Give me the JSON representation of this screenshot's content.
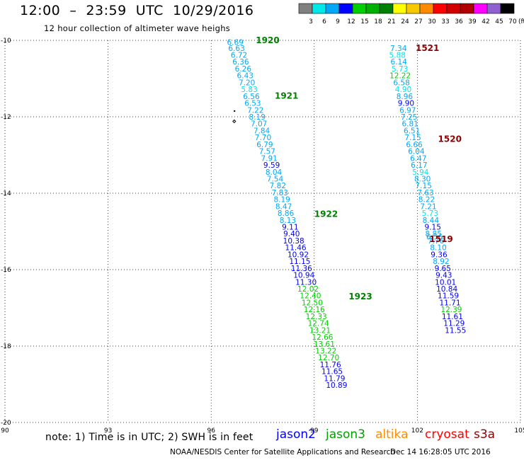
{
  "header": {
    "title": "12:00  –  23:59  UTC  10/29/2016",
    "subtitle": "12 hour collection of altimeter wave heighs"
  },
  "colorbar": {
    "swatches": [
      "#808080",
      "#00e8e8",
      "#00a8f8",
      "#0000ff",
      "#00d000",
      "#00b000",
      "#008000",
      "#ffff00",
      "#f8c800",
      "#ff8c00",
      "#ff0000",
      "#d00000",
      "#b00000",
      "#ff00ff",
      "#9060d0",
      "#000000"
    ],
    "labels": [
      "3",
      "6",
      "9",
      "12",
      "15",
      "18",
      "21",
      "24",
      "27",
      "30",
      "33",
      "36",
      "39",
      "42",
      "45",
      "70"
    ],
    "unit": "(ft)"
  },
  "chart_data": {
    "type": "scatter",
    "title": "12:00 – 23:59 UTC 10/29/2016",
    "xlim": [
      90,
      105
    ],
    "ylim": [
      -20,
      -10
    ],
    "x_ticks": [
      "90",
      "93",
      "96",
      "99",
      "102",
      "105"
    ],
    "y_ticks": [
      "-10",
      "-12",
      "-14",
      "-16",
      "-18",
      "-20"
    ],
    "grid": true,
    "legend": "bottom",
    "series": [
      {
        "name": "jason3",
        "color_hex": "#00a000",
        "points": [
          {
            "x": 96.7,
            "y": -10.05,
            "v": "6.69"
          },
          {
            "x": 96.74,
            "y": -10.2,
            "v": "6.63"
          },
          {
            "x": 96.81,
            "y": -10.38,
            "v": "6.72"
          },
          {
            "x": 96.86,
            "y": -10.56,
            "v": "6.36"
          },
          {
            "x": 96.93,
            "y": -10.74,
            "v": "6.26"
          },
          {
            "x": 96.99,
            "y": -10.92,
            "v": "6.43"
          },
          {
            "x": 97.04,
            "y": -11.1,
            "v": "7.20"
          },
          {
            "x": 97.11,
            "y": -11.28,
            "v": "5.83"
          },
          {
            "x": 97.17,
            "y": -11.46,
            "v": "6.56"
          },
          {
            "x": 97.21,
            "y": -11.64,
            "v": "6.53"
          },
          {
            "x": 97.29,
            "y": -11.82,
            "v": "7.22"
          },
          {
            "x": 97.34,
            "y": -12.0,
            "v": "8.19"
          },
          {
            "x": 97.39,
            "y": -12.18,
            "v": "7.07"
          },
          {
            "x": 97.47,
            "y": -12.36,
            "v": "7.84"
          },
          {
            "x": 97.51,
            "y": -12.54,
            "v": "7.70"
          },
          {
            "x": 97.56,
            "y": -12.72,
            "v": "6.79"
          },
          {
            "x": 97.63,
            "y": -12.9,
            "v": "7.57"
          },
          {
            "x": 97.69,
            "y": -13.08,
            "v": "7.91"
          },
          {
            "x": 97.76,
            "y": -13.26,
            "v": "9.59"
          },
          {
            "x": 97.82,
            "y": -13.44,
            "v": "8.04"
          },
          {
            "x": 97.86,
            "y": -13.62,
            "v": "7.54"
          },
          {
            "x": 97.94,
            "y": -13.8,
            "v": "7.82"
          },
          {
            "x": 98.0,
            "y": -13.98,
            "v": "7.83"
          },
          {
            "x": 98.06,
            "y": -14.16,
            "v": "8.19"
          },
          {
            "x": 98.11,
            "y": -14.34,
            "v": "8.47"
          },
          {
            "x": 98.17,
            "y": -14.52,
            "v": "8.86"
          },
          {
            "x": 98.23,
            "y": -14.7,
            "v": "8.13"
          },
          {
            "x": 98.3,
            "y": -14.88,
            "v": "9.11"
          },
          {
            "x": 98.34,
            "y": -15.06,
            "v": "9.40"
          },
          {
            "x": 98.4,
            "y": -15.24,
            "v": "10.38"
          },
          {
            "x": 98.46,
            "y": -15.42,
            "v": "11.46"
          },
          {
            "x": 98.53,
            "y": -15.6,
            "v": "10.92"
          },
          {
            "x": 98.58,
            "y": -15.78,
            "v": "11.15"
          },
          {
            "x": 98.63,
            "y": -15.96,
            "v": "11.36"
          },
          {
            "x": 98.7,
            "y": -16.14,
            "v": "10.94"
          },
          {
            "x": 98.76,
            "y": -16.32,
            "v": "11.30"
          },
          {
            "x": 98.82,
            "y": -16.5,
            "v": "12.02"
          },
          {
            "x": 98.89,
            "y": -16.68,
            "v": "12.40"
          },
          {
            "x": 98.94,
            "y": -16.86,
            "v": "12.50"
          },
          {
            "x": 99.0,
            "y": -17.04,
            "v": "12.16"
          },
          {
            "x": 99.06,
            "y": -17.22,
            "v": "12.33"
          },
          {
            "x": 99.12,
            "y": -17.4,
            "v": "12.74"
          },
          {
            "x": 99.17,
            "y": -17.58,
            "v": "13.21"
          },
          {
            "x": 99.24,
            "y": -17.76,
            "v": "12.66"
          },
          {
            "x": 99.29,
            "y": -17.94,
            "v": "13.61"
          },
          {
            "x": 99.34,
            "y": -18.12,
            "v": "13.22"
          },
          {
            "x": 99.42,
            "y": -18.3,
            "v": "12.70"
          },
          {
            "x": 99.47,
            "y": -18.48,
            "v": "11.76"
          },
          {
            "x": 99.52,
            "y": -18.66,
            "v": "11.65"
          },
          {
            "x": 99.59,
            "y": -18.84,
            "v": "11.79"
          },
          {
            "x": 99.65,
            "y": -19.02,
            "v": "10.89"
          }
        ]
      },
      {
        "name": "cryosat",
        "color_hex": "#b00000",
        "points": [
          {
            "x": 101.45,
            "y": -10.2,
            "v": "7.34"
          },
          {
            "x": 101.42,
            "y": -10.38,
            "v": "5.88"
          },
          {
            "x": 101.46,
            "y": -10.56,
            "v": "6.14"
          },
          {
            "x": 101.49,
            "y": -10.74,
            "v": "5.73"
          },
          {
            "x": 101.5,
            "y": -10.92,
            "v": "12.22"
          },
          {
            "x": 101.54,
            "y": -11.1,
            "v": "6.58"
          },
          {
            "x": 101.59,
            "y": -11.28,
            "v": "4.90"
          },
          {
            "x": 101.63,
            "y": -11.46,
            "v": "8.96"
          },
          {
            "x": 101.67,
            "y": -11.64,
            "v": "9.90"
          },
          {
            "x": 101.72,
            "y": -11.82,
            "v": "6.97"
          },
          {
            "x": 101.76,
            "y": -12.0,
            "v": "7.25"
          },
          {
            "x": 101.79,
            "y": -12.18,
            "v": "6.81"
          },
          {
            "x": 101.84,
            "y": -12.36,
            "v": "6.51"
          },
          {
            "x": 101.87,
            "y": -12.54,
            "v": "7.15"
          },
          {
            "x": 101.91,
            "y": -12.72,
            "v": "6.66"
          },
          {
            "x": 101.97,
            "y": -12.9,
            "v": "6.04"
          },
          {
            "x": 102.03,
            "y": -13.08,
            "v": "6.47"
          },
          {
            "x": 102.05,
            "y": -13.26,
            "v": "6.17"
          },
          {
            "x": 102.09,
            "y": -13.44,
            "v": "5.94"
          },
          {
            "x": 102.15,
            "y": -13.62,
            "v": "8.30"
          },
          {
            "x": 102.18,
            "y": -13.8,
            "v": "7.15"
          },
          {
            "x": 102.24,
            "y": -13.98,
            "v": "7.63"
          },
          {
            "x": 102.27,
            "y": -14.16,
            "v": "8.22"
          },
          {
            "x": 102.32,
            "y": -14.34,
            "v": "7.21"
          },
          {
            "x": 102.37,
            "y": -14.52,
            "v": "5.73"
          },
          {
            "x": 102.39,
            "y": -14.7,
            "v": "8.44"
          },
          {
            "x": 102.45,
            "y": -14.88,
            "v": "9.15"
          },
          {
            "x": 102.47,
            "y": -15.06,
            "v": "8.85"
          },
          {
            "x": 102.5,
            "y": -15.14,
            "v": "6.56"
          },
          {
            "x": 102.54,
            "y": -15.24,
            "v": "7.76"
          },
          {
            "x": 102.61,
            "y": -15.42,
            "v": "8.10"
          },
          {
            "x": 102.63,
            "y": -15.6,
            "v": "9.36"
          },
          {
            "x": 102.69,
            "y": -15.78,
            "v": "8.92"
          },
          {
            "x": 102.74,
            "y": -15.96,
            "v": "9.65"
          },
          {
            "x": 102.77,
            "y": -16.14,
            "v": "9.43"
          },
          {
            "x": 102.82,
            "y": -16.32,
            "v": "10.01"
          },
          {
            "x": 102.86,
            "y": -16.5,
            "v": "10.84"
          },
          {
            "x": 102.9,
            "y": -16.68,
            "v": "11.59"
          },
          {
            "x": 102.95,
            "y": -16.86,
            "v": "11.71"
          },
          {
            "x": 102.99,
            "y": -17.04,
            "v": "12.39"
          },
          {
            "x": 103.02,
            "y": -17.22,
            "v": "11.61"
          },
          {
            "x": 103.07,
            "y": -17.4,
            "v": "11.29"
          },
          {
            "x": 103.11,
            "y": -17.58,
            "v": "11.55"
          }
        ]
      }
    ],
    "time_annotations": [
      {
        "text": "1920",
        "x": 97.3,
        "y": -10.0,
        "color_hex": "#008000"
      },
      {
        "text": "1921",
        "x": 97.85,
        "y": -11.45,
        "color_hex": "#008000"
      },
      {
        "text": "1922",
        "x": 99.0,
        "y": -14.55,
        "color_hex": "#008000"
      },
      {
        "text": "1923",
        "x": 100.0,
        "y": -16.7,
        "color_hex": "#008000"
      },
      {
        "text": "1521",
        "x": 101.95,
        "y": -10.2,
        "color_hex": "#8b0000"
      },
      {
        "text": "1520",
        "x": 102.6,
        "y": -12.58,
        "color_hex": "#8b0000"
      },
      {
        "text": "1519",
        "x": 102.35,
        "y": -15.2,
        "color_hex": "#8b0000"
      }
    ]
  },
  "footer": {
    "note": "note:  1) Time is in UTC;  2) SWH is in feet",
    "satellites": [
      {
        "name": "jason2",
        "color_hex": "#0000ff"
      },
      {
        "name": "jason3",
        "color_hex": "#00a000"
      },
      {
        "name": "altika",
        "color_hex": "#ff8c00"
      },
      {
        "name": "cryosat",
        "color_hex": "#ff0000"
      },
      {
        "name": "s3a",
        "color_hex": "#8b0000"
      }
    ],
    "credit": "NOAA/NESDIS Center for Satellite Applications and Research",
    "timestamp": "Dec 14 16:28:05 UTC 2016"
  }
}
